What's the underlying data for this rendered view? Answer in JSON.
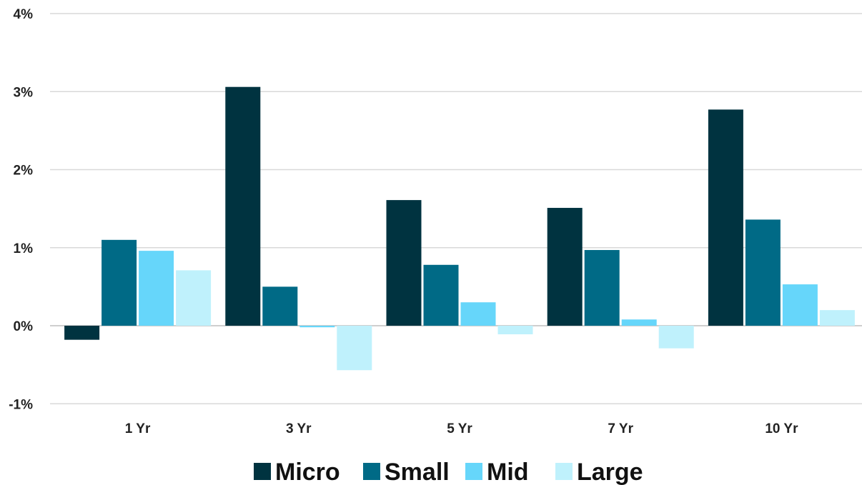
{
  "chart_data": {
    "type": "bar",
    "categories": [
      "1 Yr",
      "3 Yr",
      "5 Yr",
      "7 Yr",
      "10 Yr"
    ],
    "series": [
      {
        "name": "Micro",
        "color": "#003340",
        "values": [
          -0.18,
          3.06,
          1.61,
          1.51,
          2.77
        ]
      },
      {
        "name": "Small",
        "color": "#006a86",
        "values": [
          1.1,
          0.5,
          0.78,
          0.97,
          1.36
        ]
      },
      {
        "name": "Mid",
        "color": "#66d6fa",
        "values": [
          0.96,
          -0.02,
          0.3,
          0.08,
          0.53
        ]
      },
      {
        "name": "Large",
        "color": "#bff1fc",
        "values": [
          0.71,
          -0.57,
          -0.11,
          -0.29,
          0.2
        ]
      }
    ],
    "ylim": [
      -1,
      4
    ],
    "yticks": [
      "-1%",
      "0%",
      "1%",
      "2%",
      "3%",
      "4%"
    ],
    "ytick_values": [
      -1,
      0,
      1,
      2,
      3,
      4
    ],
    "grid": true,
    "legend_position": "bottom-center",
    "title": "",
    "xlabel": "",
    "ylabel": ""
  }
}
